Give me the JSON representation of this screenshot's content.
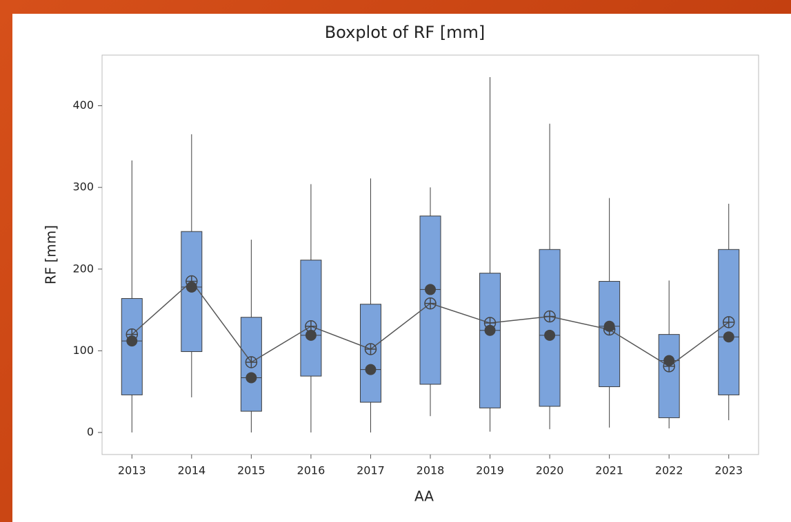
{
  "chart_data": {
    "type": "boxplot",
    "title": "Boxplot of RF [mm]",
    "x_label": "AA",
    "y_label": "RF [mm]",
    "categories": [
      "2013",
      "2014",
      "2015",
      "2016",
      "2017",
      "2018",
      "2019",
      "2020",
      "2021",
      "2022",
      "2023"
    ],
    "whisker_low": [
      0,
      43,
      0,
      0,
      0,
      20,
      1,
      4,
      6,
      5,
      15
    ],
    "q1": [
      46,
      99,
      26,
      69,
      37,
      59,
      30,
      32,
      56,
      18,
      46
    ],
    "median": [
      112,
      178,
      67,
      119,
      77,
      175,
      125,
      119,
      130,
      88,
      117
    ],
    "q3": [
      164,
      246,
      141,
      211,
      157,
      265,
      195,
      224,
      185,
      120,
      224
    ],
    "whisker_high": [
      333,
      365,
      236,
      304,
      311,
      300,
      435,
      378,
      287,
      186,
      280
    ],
    "mean": [
      120,
      185,
      86,
      130,
      102,
      158,
      134,
      142,
      126,
      81,
      135
    ],
    "color": "#7ba3dc",
    "ylim": [
      -27,
      462
    ],
    "yticks": [
      0,
      100,
      200,
      300,
      400
    ]
  }
}
